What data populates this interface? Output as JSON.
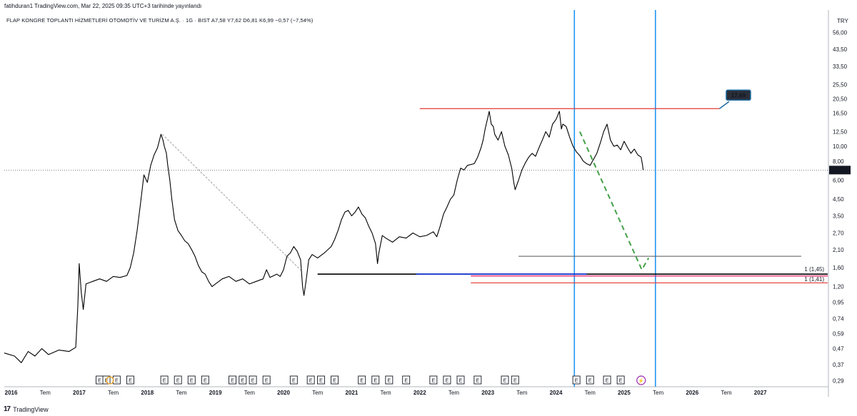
{
  "header": {
    "text": "fatihduran1 TradingView.com, Mar 22, 2025 09:35 UTC+3 tarihinde yayınlandı"
  },
  "title": {
    "text": "FLAP KONGRE TOPLANTI HİZMETLERİ OTOMOTİV VE TURİZM A.Ş. · 1G · BIST  A7,58  Y7,62  D6,81  K6,99  −0,57 (−7,54%)"
  },
  "footer": {
    "logo": "17",
    "brand": "TradingView"
  },
  "colors": {
    "price": "#000000",
    "red": "#e53935",
    "blue_v": "#2196f3",
    "dark_blue": "#1a3ad1",
    "magenta": "#e91e63",
    "green": "#43a047",
    "badge": "#1e6b9f"
  },
  "chart_data": {
    "type": "line",
    "currency_label": "TRY",
    "x_range": [
      2015.9,
      2028.0
    ],
    "y_range": [
      0.27,
      62.0
    ],
    "y_scale": "log",
    "y_ticks": [
      "56,00",
      "43,50",
      "33,50",
      "25,50",
      "20,50",
      "16,50",
      "12,50",
      "10,00",
      "8,00",
      "6,00",
      "4,50",
      "3,50",
      "2,70",
      "2,10",
      "1,60",
      "1,20",
      "0,95",
      "0,74",
      "0,59",
      "0,47",
      "0,37",
      "0,29"
    ],
    "x_ticks": [
      {
        "label": "2016",
        "x": 2016.0
      },
      {
        "label": "Tem",
        "x": 2016.5
      },
      {
        "label": "2017",
        "x": 2017.0
      },
      {
        "label": "Tem",
        "x": 2017.5
      },
      {
        "label": "2018",
        "x": 2018.0
      },
      {
        "label": "Tem",
        "x": 2018.5
      },
      {
        "label": "2019",
        "x": 2019.0
      },
      {
        "label": "Tem",
        "x": 2019.5
      },
      {
        "label": "2020",
        "x": 2020.0
      },
      {
        "label": "Tem",
        "x": 2020.5
      },
      {
        "label": "2021",
        "x": 2021.0
      },
      {
        "label": "Tem",
        "x": 2021.5
      },
      {
        "label": "2022",
        "x": 2022.0
      },
      {
        "label": "Tem",
        "x": 2022.5
      },
      {
        "label": "2023",
        "x": 2023.0
      },
      {
        "label": "Tem",
        "x": 2023.5
      },
      {
        "label": "2024",
        "x": 2024.0
      },
      {
        "label": "Tem",
        "x": 2024.5
      },
      {
        "label": "2025",
        "x": 2025.0
      },
      {
        "label": "Tem",
        "x": 2025.5
      },
      {
        "label": "2026",
        "x": 2026.0
      },
      {
        "label": "Tem",
        "x": 2026.5
      },
      {
        "label": "2027",
        "x": 2027.0
      }
    ],
    "last_price": {
      "value": 6.99,
      "label": "6,99"
    },
    "price_series": [
      [
        2015.9,
        0.44
      ],
      [
        2016.05,
        0.42
      ],
      [
        2016.15,
        0.38
      ],
      [
        2016.25,
        0.45
      ],
      [
        2016.35,
        0.42
      ],
      [
        2016.45,
        0.47
      ],
      [
        2016.55,
        0.43
      ],
      [
        2016.7,
        0.46
      ],
      [
        2016.85,
        0.45
      ],
      [
        2016.95,
        0.48
      ],
      [
        2016.98,
        0.9
      ],
      [
        2017.0,
        1.7
      ],
      [
        2017.03,
        1.1
      ],
      [
        2017.06,
        0.85
      ],
      [
        2017.1,
        1.25
      ],
      [
        2017.2,
        1.3
      ],
      [
        2017.3,
        1.35
      ],
      [
        2017.4,
        1.3
      ],
      [
        2017.5,
        1.4
      ],
      [
        2017.6,
        1.38
      ],
      [
        2017.7,
        1.42
      ],
      [
        2017.75,
        1.6
      ],
      [
        2017.8,
        2.0
      ],
      [
        2017.85,
        2.8
      ],
      [
        2017.9,
        4.2
      ],
      [
        2017.95,
        6.5
      ],
      [
        2018.0,
        5.8
      ],
      [
        2018.05,
        7.5
      ],
      [
        2018.1,
        8.8
      ],
      [
        2018.15,
        9.8
      ],
      [
        2018.2,
        12.0
      ],
      [
        2018.23,
        11.0
      ],
      [
        2018.25,
        10.0
      ],
      [
        2018.28,
        9.0
      ],
      [
        2018.3,
        7.5
      ],
      [
        2018.33,
        6.0
      ],
      [
        2018.36,
        4.5
      ],
      [
        2018.4,
        3.3
      ],
      [
        2018.45,
        2.8
      ],
      [
        2018.5,
        2.6
      ],
      [
        2018.55,
        2.4
      ],
      [
        2018.6,
        2.3
      ],
      [
        2018.65,
        2.1
      ],
      [
        2018.7,
        1.9
      ],
      [
        2018.75,
        1.65
      ],
      [
        2018.8,
        1.5
      ],
      [
        2018.85,
        1.45
      ],
      [
        2018.9,
        1.3
      ],
      [
        2018.95,
        1.2
      ],
      [
        2019.0,
        1.25
      ],
      [
        2019.1,
        1.35
      ],
      [
        2019.2,
        1.4
      ],
      [
        2019.3,
        1.3
      ],
      [
        2019.4,
        1.35
      ],
      [
        2019.5,
        1.25
      ],
      [
        2019.6,
        1.3
      ],
      [
        2019.7,
        1.35
      ],
      [
        2019.75,
        1.55
      ],
      [
        2019.8,
        1.38
      ],
      [
        2019.9,
        1.45
      ],
      [
        2019.95,
        1.4
      ],
      [
        2020.0,
        1.55
      ],
      [
        2020.05,
        1.9
      ],
      [
        2020.1,
        2.0
      ],
      [
        2020.15,
        2.2
      ],
      [
        2020.2,
        2.05
      ],
      [
        2020.25,
        1.8
      ],
      [
        2020.28,
        1.2
      ],
      [
        2020.3,
        1.05
      ],
      [
        2020.33,
        1.3
      ],
      [
        2020.37,
        1.8
      ],
      [
        2020.42,
        1.95
      ],
      [
        2020.5,
        1.85
      ],
      [
        2020.6,
        2.0
      ],
      [
        2020.7,
        2.2
      ],
      [
        2020.75,
        2.45
      ],
      [
        2020.8,
        2.8
      ],
      [
        2020.85,
        3.3
      ],
      [
        2020.9,
        3.7
      ],
      [
        2020.95,
        3.8
      ],
      [
        2021.0,
        3.5
      ],
      [
        2021.05,
        3.7
      ],
      [
        2021.1,
        4.0
      ],
      [
        2021.15,
        3.6
      ],
      [
        2021.2,
        3.4
      ],
      [
        2021.25,
        3.0
      ],
      [
        2021.3,
        2.7
      ],
      [
        2021.35,
        2.3
      ],
      [
        2021.38,
        1.7
      ],
      [
        2021.4,
        2.0
      ],
      [
        2021.45,
        2.6
      ],
      [
        2021.5,
        2.5
      ],
      [
        2021.6,
        2.35
      ],
      [
        2021.7,
        2.55
      ],
      [
        2021.8,
        2.5
      ],
      [
        2021.9,
        2.7
      ],
      [
        2022.0,
        2.55
      ],
      [
        2022.1,
        2.6
      ],
      [
        2022.2,
        2.75
      ],
      [
        2022.25,
        2.55
      ],
      [
        2022.3,
        3.0
      ],
      [
        2022.35,
        3.6
      ],
      [
        2022.4,
        4.0
      ],
      [
        2022.45,
        4.5
      ],
      [
        2022.5,
        4.8
      ],
      [
        2022.55,
        6.0
      ],
      [
        2022.6,
        7.2
      ],
      [
        2022.65,
        7.0
      ],
      [
        2022.7,
        7.5
      ],
      [
        2022.8,
        7.7
      ],
      [
        2022.85,
        8.5
      ],
      [
        2022.9,
        9.8
      ],
      [
        2022.93,
        11.0
      ],
      [
        2022.96,
        13.0
      ],
      [
        2023.0,
        15.5
      ],
      [
        2023.02,
        17.0
      ],
      [
        2023.05,
        14.0
      ],
      [
        2023.08,
        13.5
      ],
      [
        2023.1,
        12.0
      ],
      [
        2023.15,
        11.0
      ],
      [
        2023.2,
        12.5
      ],
      [
        2023.25,
        10.0
      ],
      [
        2023.3,
        8.8
      ],
      [
        2023.35,
        7.2
      ],
      [
        2023.38,
        5.8
      ],
      [
        2023.4,
        5.2
      ],
      [
        2023.45,
        6.0
      ],
      [
        2023.5,
        7.0
      ],
      [
        2023.55,
        7.8
      ],
      [
        2023.6,
        8.5
      ],
      [
        2023.65,
        9.0
      ],
      [
        2023.7,
        8.6
      ],
      [
        2023.75,
        9.8
      ],
      [
        2023.8,
        11.0
      ],
      [
        2023.85,
        12.5
      ],
      [
        2023.9,
        11.5
      ],
      [
        2023.95,
        14.0
      ],
      [
        2024.0,
        15.0
      ],
      [
        2024.05,
        17.0
      ],
      [
        2024.08,
        13.0
      ],
      [
        2024.1,
        14.0
      ],
      [
        2024.15,
        13.5
      ],
      [
        2024.2,
        11.5
      ],
      [
        2024.25,
        10.0
      ],
      [
        2024.3,
        9.2
      ],
      [
        2024.35,
        8.7
      ],
      [
        2024.4,
        8.0
      ],
      [
        2024.45,
        7.7
      ],
      [
        2024.5,
        7.5
      ],
      [
        2024.55,
        8.2
      ],
      [
        2024.6,
        9.0
      ],
      [
        2024.65,
        10.5
      ],
      [
        2024.7,
        12.5
      ],
      [
        2024.75,
        14.0
      ],
      [
        2024.8,
        11.0
      ],
      [
        2024.85,
        10.0
      ],
      [
        2024.9,
        10.2
      ],
      [
        2024.95,
        9.5
      ],
      [
        2025.0,
        10.8
      ],
      [
        2025.05,
        9.8
      ],
      [
        2025.1,
        9.0
      ],
      [
        2025.15,
        9.6
      ],
      [
        2025.2,
        8.8
      ],
      [
        2025.25,
        8.5
      ],
      [
        2025.27,
        7.6
      ],
      [
        2025.28,
        6.99
      ]
    ],
    "drawings": {
      "resistance_red": {
        "value": 17.69,
        "x": [
          2022.0,
          2026.4
        ]
      },
      "label_badge": {
        "value": 17.69,
        "label": "17,69",
        "x": 2026.5
      },
      "gray_hline": {
        "value": 1.9,
        "x": [
          2023.45,
          2027.6
        ]
      },
      "black_hline": {
        "value": 1.45,
        "x": [
          2020.5,
          2028.0
        ]
      },
      "dark_blue_hline": {
        "value": 1.45,
        "x": [
          2021.95,
          2024.45
        ]
      },
      "magenta_hline": {
        "value": 1.41,
        "x": [
          2022.75,
          2028.0
        ]
      },
      "red_hline_low": {
        "value": 1.27,
        "x": [
          2022.75,
          2028.0
        ]
      },
      "vertical_lines": [
        2024.27,
        2025.46
      ],
      "gray_dashed_trend": {
        "from": [
          2018.22,
          12.0
        ],
        "to": [
          2020.28,
          1.5
        ]
      },
      "green_dashed_projection": {
        "from": [
          2024.35,
          12.5
        ],
        "mid": [
          2025.26,
          1.55
        ],
        "to": [
          2025.36,
          1.85
        ]
      },
      "fib_label_top": {
        "value": 1.45,
        "label": "1 (1,45)"
      },
      "fib_label_bottom": {
        "value": 1.35,
        "label": "1 (1,41)"
      }
    },
    "events": {
      "symbol": "E",
      "flash_symbol": "⚡",
      "positions": [
        2017.3,
        2017.4,
        2017.55,
        2017.75,
        2018.25,
        2018.45,
        2018.65,
        2018.85,
        2019.25,
        2019.4,
        2019.55,
        2019.75,
        2020.15,
        2020.4,
        2020.55,
        2020.75,
        2021.15,
        2021.35,
        2021.55,
        2021.8,
        2022.2,
        2022.4,
        2022.6,
        2022.85,
        2023.25,
        2023.4,
        2024.3,
        2024.5,
        2024.75,
        2024.95
      ],
      "orange_ring_x": 2017.45,
      "flash_x": 2025.25
    }
  }
}
